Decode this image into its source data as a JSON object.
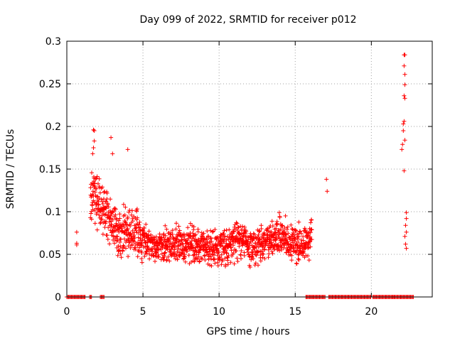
{
  "chart_data": {
    "type": "scatter",
    "title": "Day 099 of 2022, SRMTID for receiver p012",
    "xlabel": "GPS time / hours",
    "ylabel": "SRMTID / TECUs",
    "xlim": [
      0,
      24
    ],
    "ylim": [
      0,
      0.3
    ],
    "x_ticks": [
      0,
      5,
      10,
      15,
      20
    ],
    "x_tick_labels": [
      "0",
      "5",
      "10",
      "15",
      "20"
    ],
    "y_ticks": [
      0,
      0.05,
      0.1,
      0.15,
      0.2,
      0.25,
      0.3
    ],
    "y_tick_labels": [
      "0",
      "0.05",
      "0.1",
      "0.15",
      "0.2",
      "0.25",
      "0.3"
    ],
    "grid": true,
    "marker": "+",
    "color": "#ff0000",
    "series": [
      {
        "name": "SRMTID",
        "envelope_hours": [
          0.0,
          0.3,
          0.7,
          1.5,
          1.8,
          2.2,
          3.0,
          3.5,
          4.0,
          4.5,
          5.0,
          5.5,
          6.0,
          6.5,
          7.0,
          7.5,
          8.0,
          8.5,
          9.0,
          9.5,
          10.0,
          10.5,
          11.0,
          11.5,
          12.0,
          12.5,
          13.0,
          13.5,
          14.0,
          14.5,
          15.0,
          15.5,
          16.0,
          17.0,
          17.1,
          21.0,
          22.0,
          22.5,
          22.8
        ],
        "envelope_mean": [
          0,
          0,
          0.07,
          0.11,
          0.12,
          0.11,
          0.085,
          0.075,
          0.08,
          0.075,
          0.065,
          0.065,
          0.06,
          0.06,
          0.06,
          0.06,
          0.06,
          0.06,
          0.06,
          0.055,
          0.055,
          0.06,
          0.065,
          0.07,
          0.06,
          0.06,
          0.065,
          0.07,
          0.075,
          0.065,
          0.06,
          0.06,
          0.07,
          0.13,
          0,
          0,
          0.21,
          0.08,
          0
        ],
        "envelope_spread": [
          0,
          0,
          0.008,
          0.04,
          0.05,
          0.035,
          0.04,
          0.04,
          0.045,
          0.035,
          0.03,
          0.025,
          0.025,
          0.03,
          0.03,
          0.03,
          0.03,
          0.03,
          0.03,
          0.03,
          0.03,
          0.03,
          0.035,
          0.035,
          0.03,
          0.03,
          0.03,
          0.03,
          0.035,
          0.03,
          0.04,
          0.03,
          0.03,
          0.01,
          0,
          0,
          0.06,
          0.02,
          0
        ]
      }
    ],
    "notable_points": [
      {
        "x": 0.65,
        "y": 0.076
      },
      {
        "x": 0.65,
        "y": 0.063
      },
      {
        "x": 0.65,
        "y": 0.061
      },
      {
        "x": 1.75,
        "y": 0.196
      },
      {
        "x": 1.8,
        "y": 0.195
      },
      {
        "x": 1.8,
        "y": 0.183
      },
      {
        "x": 1.75,
        "y": 0.175
      },
      {
        "x": 1.7,
        "y": 0.168
      },
      {
        "x": 2.9,
        "y": 0.187
      },
      {
        "x": 3.0,
        "y": 0.168
      },
      {
        "x": 4.0,
        "y": 0.173
      },
      {
        "x": 17.05,
        "y": 0.138
      },
      {
        "x": 17.1,
        "y": 0.124
      },
      {
        "x": 22.15,
        "y": 0.284
      },
      {
        "x": 22.2,
        "y": 0.284
      },
      {
        "x": 22.15,
        "y": 0.271
      },
      {
        "x": 22.2,
        "y": 0.261
      },
      {
        "x": 22.2,
        "y": 0.249
      },
      {
        "x": 22.15,
        "y": 0.236
      },
      {
        "x": 22.2,
        "y": 0.233
      },
      {
        "x": 22.15,
        "y": 0.206
      },
      {
        "x": 22.1,
        "y": 0.203
      },
      {
        "x": 22.1,
        "y": 0.195
      },
      {
        "x": 22.2,
        "y": 0.184
      },
      {
        "x": 22.05,
        "y": 0.179
      },
      {
        "x": 22.0,
        "y": 0.173
      },
      {
        "x": 22.15,
        "y": 0.148
      },
      {
        "x": 22.3,
        "y": 0.099
      },
      {
        "x": 22.3,
        "y": 0.092
      },
      {
        "x": 22.25,
        "y": 0.084
      },
      {
        "x": 22.3,
        "y": 0.076
      },
      {
        "x": 22.2,
        "y": 0.071
      },
      {
        "x": 22.25,
        "y": 0.062
      },
      {
        "x": 22.3,
        "y": 0.057
      }
    ],
    "zero_value_intervals_hours": [
      [
        0.0,
        1.25
      ],
      [
        1.5,
        1.65
      ],
      [
        2.2,
        2.5
      ],
      [
        15.7,
        17.0
      ],
      [
        17.2,
        20.0
      ],
      [
        20.1,
        21.5
      ],
      [
        21.5,
        22.8
      ]
    ]
  }
}
